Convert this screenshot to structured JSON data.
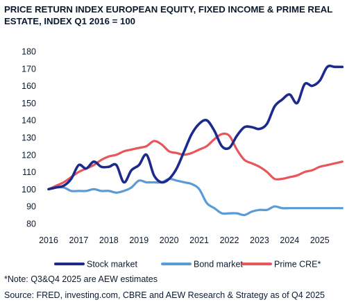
{
  "chart_data": {
    "type": "line",
    "title": "PRICE RETURN INDEX EUROPEAN EQUITY, FIXED INCOME & PRIME REAL ESTATE, INDEX Q1 2016 = 100",
    "xlabel": "",
    "ylabel": "",
    "xlim": [
      2016,
      2025.75
    ],
    "ylim": [
      80,
      180
    ],
    "y_ticks": [
      80,
      90,
      100,
      110,
      120,
      130,
      140,
      150,
      160,
      170,
      180
    ],
    "x_ticks": [
      "2016",
      "2017",
      "2018",
      "2019",
      "2020",
      "2021",
      "2022",
      "2023",
      "2024",
      "2025"
    ],
    "grid": false,
    "legend_position": "bottom",
    "series": [
      {
        "name": "Stock market",
        "color": "#1b2a8c",
        "x": [
          2016.0,
          2016.25,
          2016.5,
          2016.75,
          2017.0,
          2017.25,
          2017.5,
          2017.75,
          2018.0,
          2018.25,
          2018.5,
          2018.75,
          2019.0,
          2019.25,
          2019.5,
          2019.75,
          2020.0,
          2020.25,
          2020.5,
          2020.75,
          2021.0,
          2021.25,
          2021.5,
          2021.75,
          2022.0,
          2022.25,
          2022.5,
          2022.75,
          2023.0,
          2023.25,
          2023.5,
          2023.75,
          2024.0,
          2024.25,
          2024.5,
          2024.75,
          2025.0,
          2025.25,
          2025.5,
          2025.75
        ],
        "y": [
          100,
          101,
          102,
          106,
          114,
          112,
          116,
          113,
          113,
          114,
          104,
          111,
          114,
          120,
          108,
          104,
          106,
          112,
          122,
          132,
          138,
          140,
          134,
          125,
          124,
          131,
          136,
          136,
          135,
          138,
          148,
          152,
          155,
          150,
          161,
          160,
          163,
          171,
          171,
          171
        ]
      },
      {
        "name": "Bond market",
        "color": "#5b9bd5",
        "x": [
          2016.0,
          2016.25,
          2016.5,
          2016.75,
          2017.0,
          2017.25,
          2017.5,
          2017.75,
          2018.0,
          2018.25,
          2018.5,
          2018.75,
          2019.0,
          2019.25,
          2019.5,
          2019.75,
          2020.0,
          2020.25,
          2020.5,
          2020.75,
          2021.0,
          2021.25,
          2021.5,
          2021.75,
          2022.0,
          2022.25,
          2022.5,
          2022.75,
          2023.0,
          2023.25,
          2023.5,
          2023.75,
          2024.0,
          2024.25,
          2024.5,
          2024.75,
          2025.0,
          2025.25,
          2025.5,
          2025.75
        ],
        "y": [
          100,
          101,
          101,
          99,
          99,
          99,
          100,
          99,
          99,
          98,
          99,
          101,
          105,
          104,
          104,
          104,
          106,
          105,
          104,
          103,
          100,
          92,
          89,
          86,
          86,
          86,
          85,
          87,
          88,
          88,
          90,
          89,
          89,
          89,
          89,
          89,
          89,
          89,
          89,
          89
        ]
      },
      {
        "name": "Prime CRE*",
        "color": "#e8565a",
        "x": [
          2016.0,
          2016.25,
          2016.5,
          2016.75,
          2017.0,
          2017.25,
          2017.5,
          2017.75,
          2018.0,
          2018.25,
          2018.5,
          2018.75,
          2019.0,
          2019.25,
          2019.5,
          2019.75,
          2020.0,
          2020.25,
          2020.5,
          2020.75,
          2021.0,
          2021.25,
          2021.5,
          2021.75,
          2022.0,
          2022.25,
          2022.5,
          2022.75,
          2023.0,
          2023.25,
          2023.5,
          2023.75,
          2024.0,
          2024.25,
          2024.5,
          2024.75,
          2025.0,
          2025.25,
          2025.5,
          2025.75
        ],
        "y": [
          100,
          102,
          104,
          107,
          110,
          112,
          114,
          117,
          119,
          120,
          122,
          123,
          124,
          125,
          128,
          126,
          122,
          121,
          120,
          121,
          123,
          125,
          129,
          132,
          131,
          123,
          117,
          115,
          113,
          110,
          106,
          106,
          107,
          108,
          110,
          111,
          113,
          114,
          115,
          116
        ]
      }
    ]
  },
  "notes": {
    "estimate": "*Note: Q3&Q4 2025 are AEW estimates",
    "source": "Source: FRED, investing.com, CBRE and AEW Research & Strategy as of Q4 2025"
  }
}
